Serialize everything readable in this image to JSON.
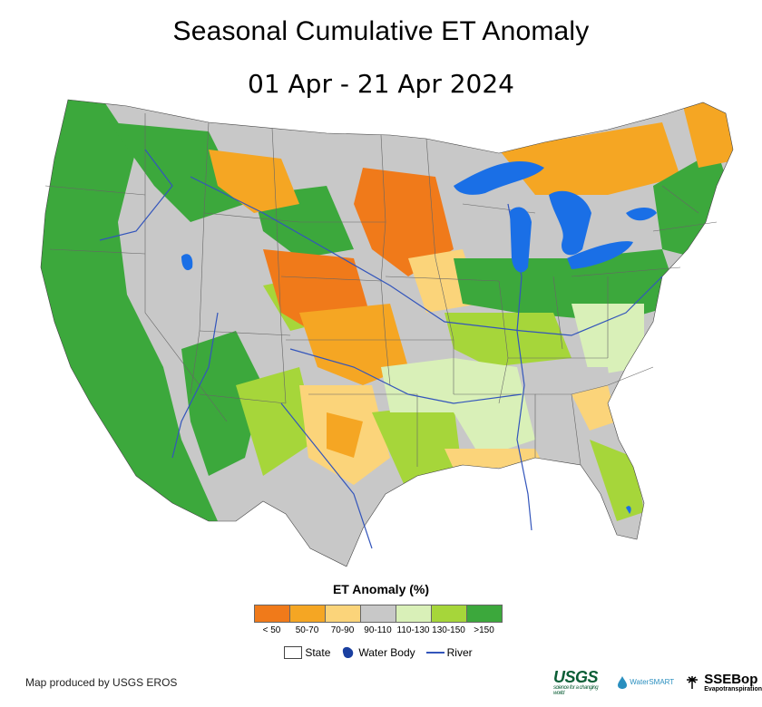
{
  "title": "Seasonal Cumulative ET Anomaly",
  "subtitle": "01 Apr - 21 Apr 2024",
  "legend": {
    "title": "ET Anomaly (%)",
    "classes": [
      {
        "label": "< 50",
        "color": "#f07a1a"
      },
      {
        "label": "50-70",
        "color": "#f5a623"
      },
      {
        "label": "70-90",
        "color": "#fbd47a"
      },
      {
        "label": "90-110",
        "color": "#c8c8c8"
      },
      {
        "label": "110-130",
        "color": "#d9f0b8"
      },
      {
        "label": "130-150",
        "color": "#a6d63a"
      },
      {
        "label": ">150",
        "color": "#3ca83c"
      }
    ],
    "overlays": {
      "state": "State",
      "water_body": "Water Body",
      "river": "River"
    }
  },
  "colors": {
    "water": "#1a6fe6",
    "river": "#3355bb",
    "state_border": "#666666"
  },
  "credit": "Map produced by USGS EROS",
  "logos": {
    "usgs": "USGS",
    "usgs_tagline": "science for a changing world",
    "water_smart": "WaterSMART",
    "ssebop": "SSEBop",
    "ssebop_sub": "Evapotranspiration"
  }
}
